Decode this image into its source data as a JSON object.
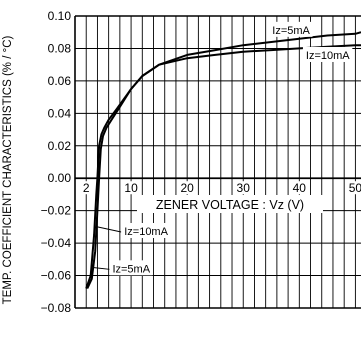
{
  "chart_data": {
    "type": "line",
    "title": "",
    "xlabel": "ZENER VOLTAGE : Vz (V)",
    "ylabel": "TEMP. COEFFICIENT CHARACTERISTICS (% / °C)",
    "xlim": [
      0,
      51
    ],
    "ylim": [
      -0.08,
      0.1
    ],
    "x_ticks": [
      2,
      10,
      20,
      30,
      40,
      50
    ],
    "x_tick_labels": [
      "2",
      "10",
      "20",
      "30",
      "40",
      "50"
    ],
    "y_ticks": [
      -0.08,
      -0.06,
      -0.04,
      -0.02,
      0.0,
      0.02,
      0.04,
      0.06,
      0.08,
      0.1
    ],
    "y_tick_labels": [
      "−0.08",
      "−0.06",
      "−0.04",
      "−0.02",
      "0.00",
      "0.02",
      "0.04",
      "0.06",
      "0.08",
      "0.10"
    ],
    "grid": true,
    "series": [
      {
        "name": "Iz=5mA",
        "x": [
          2.2,
          3.0,
          3.6,
          4.0,
          4.3,
          4.6,
          5.0,
          5.6,
          6.5,
          8.0,
          10,
          12,
          15,
          20,
          25,
          30,
          35,
          40,
          45,
          50,
          51
        ],
        "y": [
          -0.068,
          -0.062,
          -0.045,
          -0.02,
          0.0,
          0.018,
          0.026,
          0.031,
          0.036,
          0.044,
          0.055,
          0.063,
          0.07,
          0.076,
          0.079,
          0.082,
          0.084,
          0.086,
          0.088,
          0.089,
          0.09
        ]
      },
      {
        "name": "Iz=10mA",
        "x": [
          2.0,
          2.8,
          3.4,
          3.8,
          4.0,
          4.3,
          4.7,
          5.2,
          6.0,
          7.5,
          10,
          12,
          15,
          20,
          25,
          30,
          35,
          40,
          45,
          50,
          51
        ],
        "y": [
          -0.068,
          -0.06,
          -0.035,
          -0.01,
          0.0,
          0.02,
          0.027,
          0.031,
          0.036,
          0.043,
          0.055,
          0.063,
          0.07,
          0.074,
          0.076,
          0.078,
          0.079,
          0.08,
          0.081,
          0.082,
          0.082
        ]
      }
    ],
    "annotations": [
      {
        "text": "Iz=5mA",
        "x": 35,
        "y": 0.089
      },
      {
        "text": "Iz=10mA",
        "x": 41,
        "y": 0.0735
      },
      {
        "text": "Iz=10mA",
        "x": 8.6,
        "y": -0.035
      },
      {
        "text": "Iz=5mA",
        "x": 6.5,
        "y": -0.058
      }
    ]
  }
}
